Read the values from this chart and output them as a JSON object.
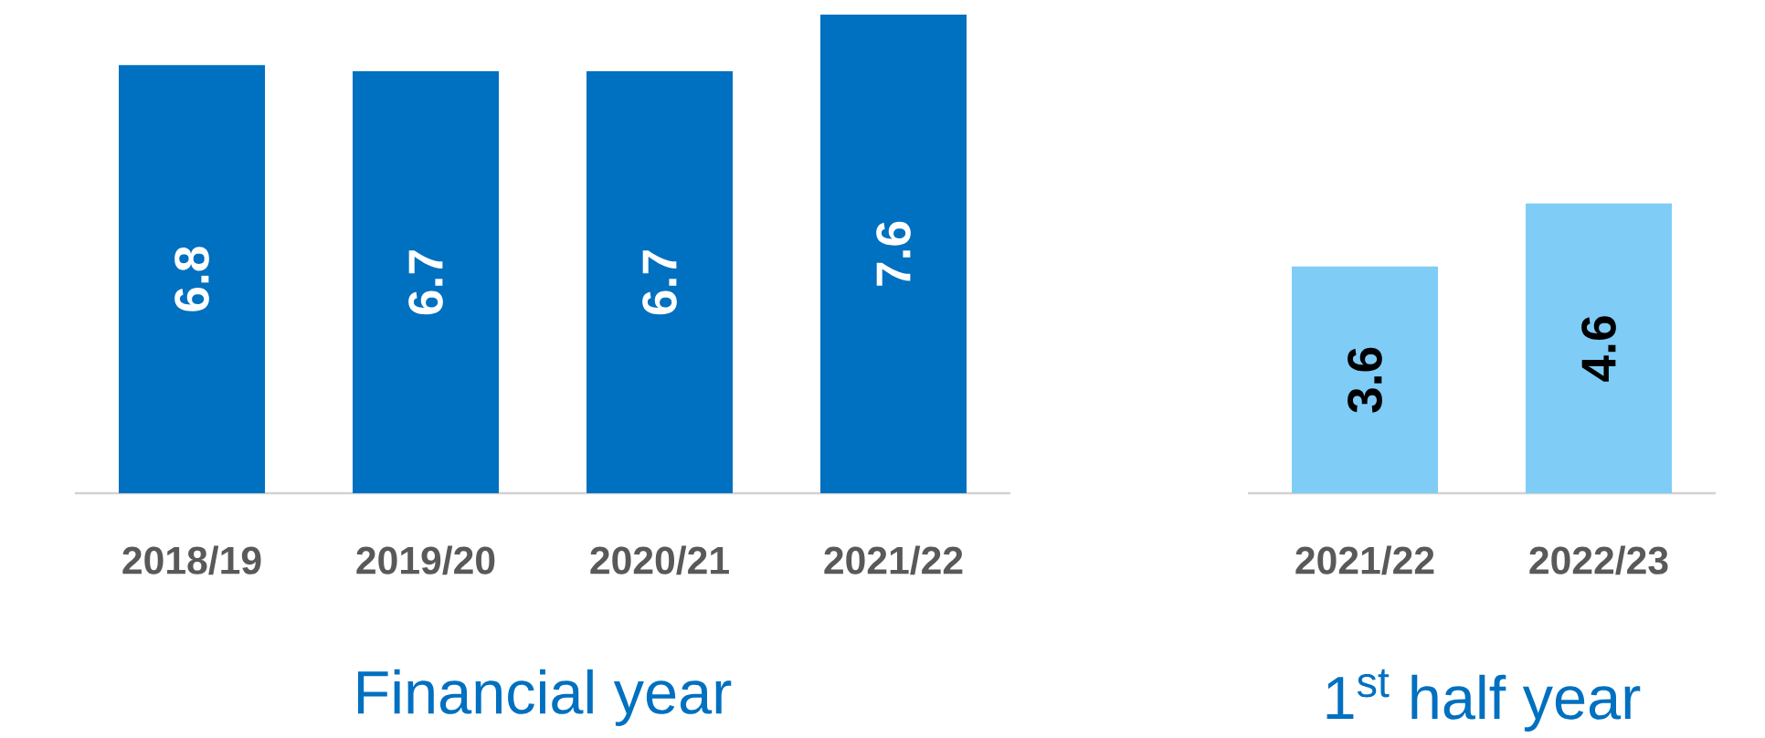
{
  "chart_data": [
    {
      "type": "bar",
      "xlabel": "Financial year",
      "categories": [
        "2018/19",
        "2019/20",
        "2020/21",
        "2021/22"
      ],
      "values": [
        6.8,
        6.7,
        6.7,
        7.6
      ],
      "color": "#0070c0",
      "ylim": [
        0,
        7.6
      ],
      "data_labels": true,
      "tick_labels": "x"
    },
    {
      "type": "bar",
      "xlabel": "1$^{st}$ half year",
      "categories": [
        "2021/22",
        "2022/23"
      ],
      "values": [
        3.6,
        4.6
      ],
      "color": "#7fccf7",
      "data_labels": true,
      "tick_labels": "x"
    }
  ]
}
